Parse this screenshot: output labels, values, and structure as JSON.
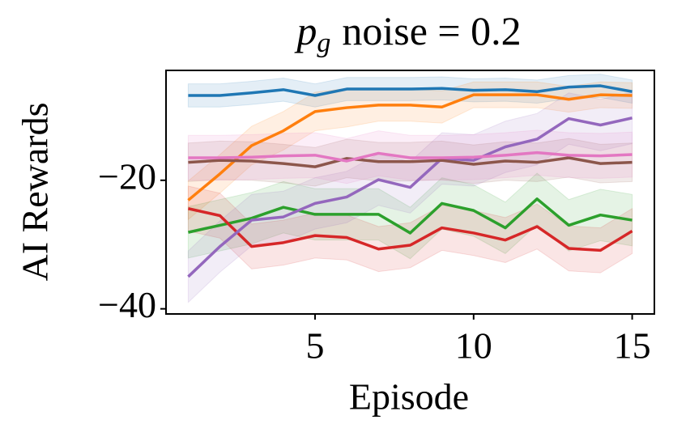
{
  "chart_data": {
    "type": "line",
    "title": {
      "symbol": "p",
      "subscript": "g",
      "text": "noise = 0.2"
    },
    "xlabel": "Episode",
    "ylabel": "AI Rewards",
    "x": [
      1,
      2,
      3,
      4,
      5,
      6,
      7,
      8,
      9,
      10,
      11,
      12,
      13,
      14,
      15
    ],
    "xlim": [
      0.3,
      15.7
    ],
    "xticks": [
      5,
      10,
      15
    ],
    "ylim": [
      -40.8,
      -2.9
    ],
    "yticks": [
      {
        "value": -20,
        "label": "−20"
      },
      {
        "value": -40,
        "label": "−40"
      }
    ],
    "series": [
      {
        "color": "#1f77b4",
        "values": [
          -6.8,
          -6.8,
          -6.4,
          -5.9,
          -6.8,
          -5.8,
          -5.8,
          -5.8,
          -5.7,
          -6.0,
          -5.9,
          -6.2,
          -5.5,
          -5.3,
          -6.2
        ],
        "errors": [
          1.8,
          1.8,
          1.8,
          1.8,
          1.8,
          1.8,
          1.8,
          1.8,
          1.8,
          1.8,
          1.8,
          1.8,
          1.8,
          1.8,
          1.8
        ]
      },
      {
        "color": "#ff7f0e",
        "values": [
          -23.1,
          -19.0,
          -14.6,
          -12.3,
          -9.3,
          -8.7,
          -8.3,
          -8.3,
          -8.6,
          -6.7,
          -6.7,
          -6.7,
          -7.4,
          -6.7,
          -6.8
        ],
        "errors": [
          3,
          3,
          3,
          3,
          3,
          3,
          2.5,
          2.5,
          2.5,
          2,
          2,
          2,
          2,
          2,
          2
        ]
      },
      {
        "color": "#2ca02c",
        "values": [
          -28.1,
          -27.0,
          -25.9,
          -24.2,
          -25.3,
          -25.3,
          -25.3,
          -28.2,
          -23.6,
          -24.7,
          -27.4,
          -22.9,
          -27.0,
          -25.4,
          -26.2
        ],
        "errors": [
          4,
          4,
          4,
          4,
          4,
          4,
          4,
          4,
          4,
          4,
          4,
          4,
          4,
          4,
          4
        ]
      },
      {
        "color": "#d62728",
        "values": [
          -24.4,
          -25.5,
          -30.3,
          -29.7,
          -28.6,
          -28.9,
          -30.7,
          -30.1,
          -27.4,
          -28.2,
          -29.3,
          -27.2,
          -30.6,
          -30.9,
          -27.9
        ],
        "errors": [
          3.5,
          3.5,
          3.5,
          3.5,
          3.5,
          3.5,
          3.5,
          3.5,
          3.5,
          3.5,
          3.5,
          3.5,
          3.5,
          3.5,
          3.5
        ]
      },
      {
        "color": "#9467bd",
        "values": [
          -35.0,
          -30.3,
          -26.2,
          -25.7,
          -23.6,
          -22.6,
          -19.9,
          -21.1,
          -16.6,
          -16.9,
          -14.8,
          -13.6,
          -10.4,
          -11.4,
          -10.3
        ],
        "errors": [
          4,
          4,
          4,
          4,
          4,
          4,
          4,
          4,
          4,
          4,
          4,
          4,
          4,
          4,
          4
        ]
      },
      {
        "color": "#8c564b",
        "values": [
          -17.2,
          -16.9,
          -17.0,
          -17.4,
          -17.9,
          -16.6,
          -17.1,
          -17.1,
          -16.9,
          -17.5,
          -17.0,
          -17.2,
          -16.5,
          -17.4,
          -17.2
        ],
        "errors": [
          3,
          3,
          3,
          3,
          3,
          3,
          3,
          3,
          3,
          3,
          3,
          3,
          3,
          3,
          3
        ]
      },
      {
        "color": "#e377c2",
        "values": [
          -16.5,
          -16.5,
          -16.4,
          -16.2,
          -16.1,
          -17.0,
          -15.8,
          -16.5,
          -16.5,
          -16.4,
          -16.1,
          -15.7,
          -16.1,
          -16.2,
          -16.0
        ],
        "errors": [
          3.5,
          3.5,
          3.5,
          3.5,
          3.5,
          3.5,
          3.5,
          3.5,
          3.5,
          3.5,
          3.5,
          3.5,
          3.5,
          3.5,
          3.5
        ]
      }
    ]
  }
}
